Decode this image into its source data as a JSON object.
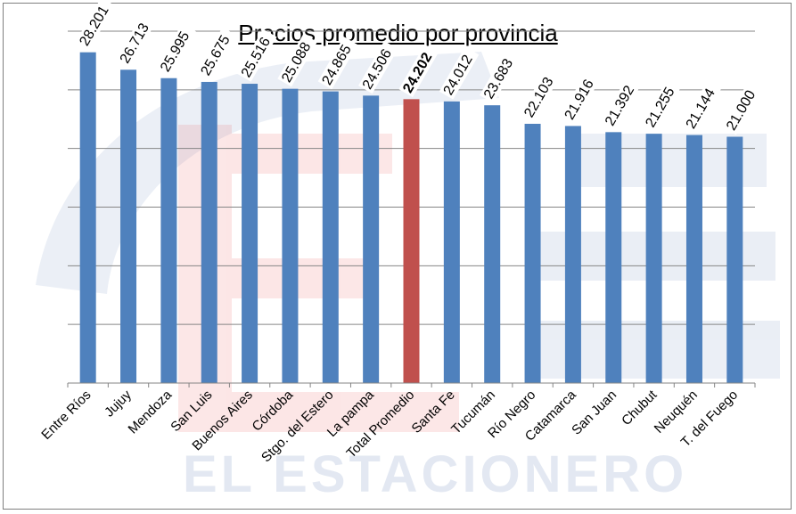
{
  "chart_data": {
    "type": "bar",
    "title": "Precios promedio por provincia",
    "categories": [
      "Entre Ríos",
      "Jujuy",
      "Mendoza",
      "San Luis",
      "Buenos Aires",
      "Córdoba",
      "Stgo. del Estero",
      "La pampa",
      "Total Promedio",
      "Santa Fe",
      "Tucumán",
      "Río Negro",
      "Catamarca",
      "San Juan",
      "Chubut",
      "Neuquén",
      "T. del Fuego"
    ],
    "values": [
      28201,
      26713,
      25995,
      25675,
      25516,
      25088,
      24865,
      24506,
      24202,
      24012,
      23683,
      22103,
      21916,
      21392,
      21255,
      21144,
      21000
    ],
    "value_labels": [
      "28.201",
      "26.713",
      "25.995",
      "25.675",
      "25.516",
      "25.088",
      "24.865",
      "24.506",
      "24.202",
      "24.012",
      "23.683",
      "22.103",
      "21.916",
      "21.392",
      "21.255",
      "21.144",
      "21.000"
    ],
    "highlight_category": "Total Promedio",
    "ylim": [
      0,
      30000
    ],
    "gridlines": [
      5000,
      10000,
      15000,
      20000,
      25000,
      30000
    ],
    "grid": true,
    "bar_color": "#4f81bd",
    "highlight_color": "#c0504d",
    "xlabel": "",
    "ylabel": ""
  },
  "watermark": {
    "text": "EL ESTACIONERO",
    "colors": [
      "#1f4e9a",
      "#e8383d"
    ]
  }
}
